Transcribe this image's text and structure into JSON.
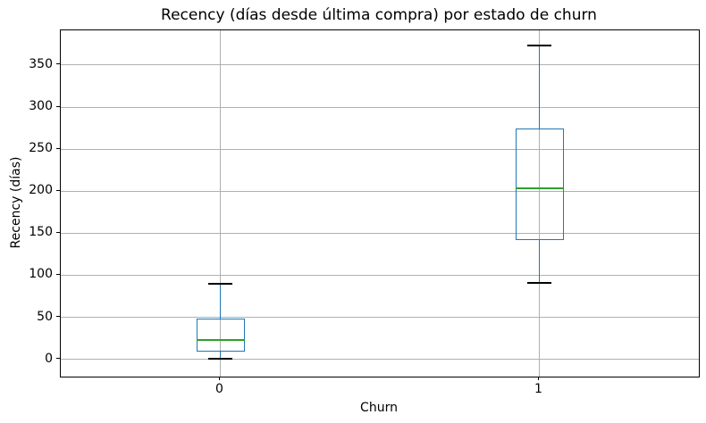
{
  "figure": {
    "title": "Recency (días desde última compra) por estado de churn",
    "xlabel": "Churn",
    "ylabel": "Recency (días)"
  },
  "chart_data": {
    "type": "box",
    "title": "Recency (días desde última compra) por estado de churn",
    "xlabel": "Churn",
    "ylabel": "Recency (días)",
    "categories": [
      "0",
      "1"
    ],
    "series": [
      {
        "name": "0",
        "whislo": 1,
        "q1": 9,
        "med": 23,
        "q3": 49,
        "whishi": 90
      },
      {
        "name": "1",
        "whislo": 91,
        "q1": 142,
        "med": 203,
        "q3": 275,
        "whishi": 373
      }
    ],
    "yticks": [
      0,
      50,
      100,
      150,
      200,
      250,
      300,
      350
    ],
    "ylim": [
      -20.5,
      391.3
    ],
    "xlim_positions": [
      0.5,
      2.5
    ],
    "grid": true,
    "legend": false,
    "colors": {
      "box": "#1f77b4",
      "whisker": "#1f77b4",
      "median": "#2ca02c",
      "cap": "#000000",
      "grid": "#b0b0b0",
      "axes_edge": "#000000",
      "background": "#ffffff"
    }
  }
}
